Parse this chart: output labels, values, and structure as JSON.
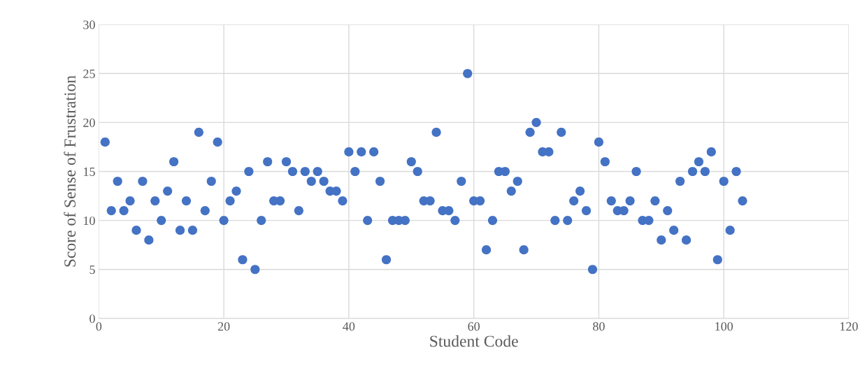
{
  "chart_data": {
    "type": "scatter",
    "xlabel": "Student Code",
    "ylabel": "Score of Sense of Frustration",
    "x": [
      1,
      2,
      3,
      4,
      5,
      6,
      7,
      8,
      9,
      10,
      11,
      12,
      13,
      14,
      15,
      16,
      17,
      18,
      19,
      20,
      21,
      22,
      23,
      24,
      25,
      26,
      27,
      28,
      29,
      30,
      31,
      32,
      33,
      34,
      35,
      36,
      37,
      38,
      39,
      40,
      41,
      42,
      43,
      44,
      45,
      46,
      47,
      48,
      49,
      50,
      51,
      52,
      53,
      54,
      55,
      56,
      57,
      58,
      59,
      60,
      61,
      62,
      63,
      64,
      65,
      66,
      67,
      68,
      69,
      70,
      71,
      72,
      73,
      74,
      75,
      76,
      77,
      78,
      79,
      80,
      81,
      82,
      83,
      84,
      85,
      86,
      87,
      88,
      89,
      90,
      91,
      92,
      93,
      94,
      95,
      96,
      97,
      98,
      99,
      100,
      101,
      102,
      103
    ],
    "values": [
      18,
      11,
      14,
      11,
      12,
      9,
      14,
      8,
      12,
      10,
      13,
      16,
      9,
      12,
      9,
      19,
      11,
      14,
      18,
      10,
      12,
      13,
      6,
      15,
      5,
      10,
      16,
      12,
      12,
      16,
      15,
      11,
      15,
      14,
      15,
      14,
      13,
      13,
      12,
      17,
      15,
      17,
      10,
      17,
      14,
      6,
      10,
      10,
      10,
      16,
      15,
      12,
      12,
      19,
      11,
      11,
      10,
      14,
      25,
      12,
      12,
      7,
      10,
      15,
      15,
      13,
      14,
      7,
      19,
      20,
      17,
      17,
      10,
      19,
      10,
      12,
      13,
      11,
      5,
      18,
      16,
      12,
      11,
      11,
      12,
      15,
      10,
      10,
      12,
      8,
      11,
      9,
      14,
      8,
      15,
      16,
      15,
      17,
      6,
      14,
      9,
      15,
      12
    ],
    "color": "#4472c4",
    "marker": "circle",
    "xlim": [
      0,
      120
    ],
    "xticks": [
      0,
      20,
      40,
      60,
      80,
      100,
      120
    ],
    "ylim": [
      0,
      30
    ],
    "yticks": [
      0,
      5,
      10,
      15,
      20,
      25,
      30
    ],
    "grid": true
  }
}
